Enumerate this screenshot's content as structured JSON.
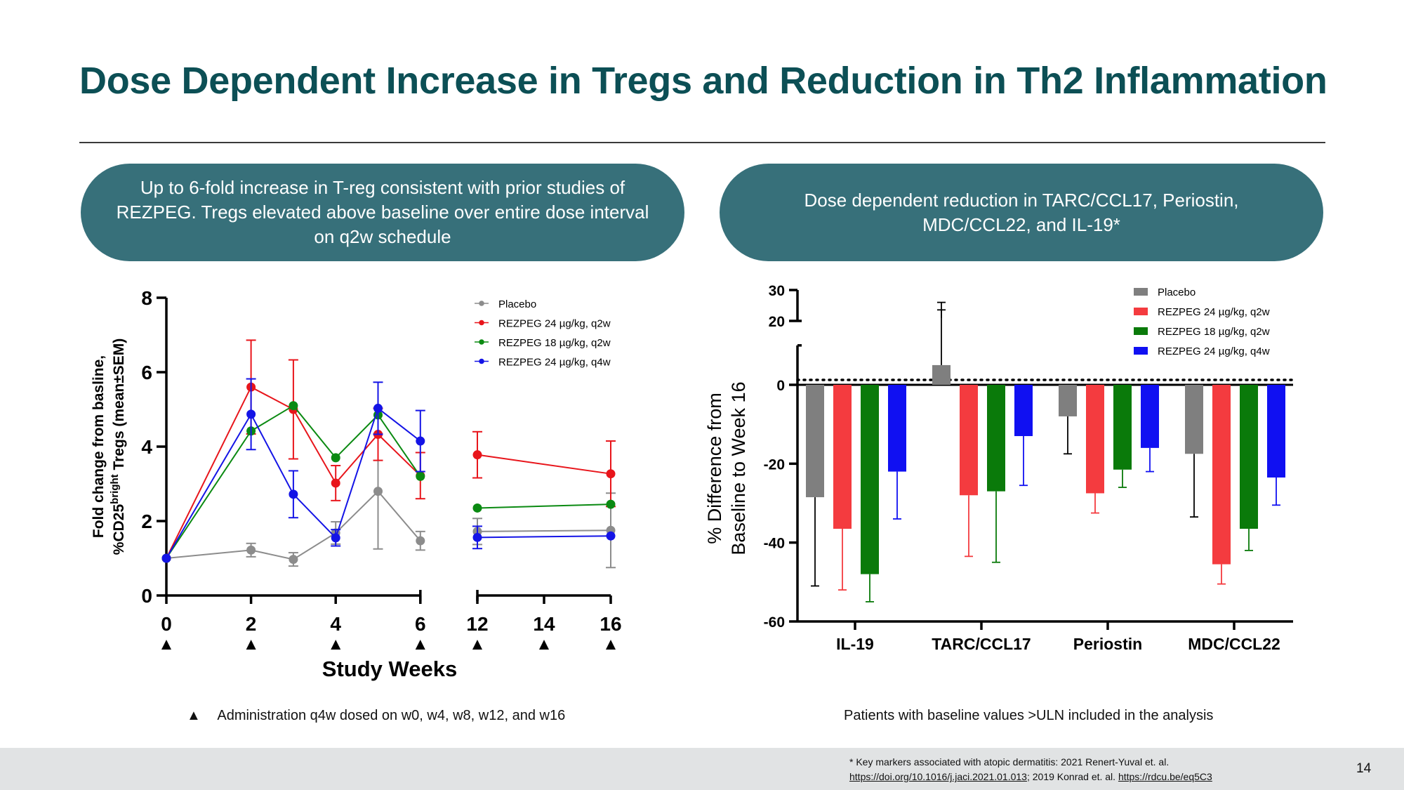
{
  "slide": {
    "title": "Dose Dependent Increase in Tregs and Reduction in Th2 Inflammation",
    "page_number": "14"
  },
  "left_panel": {
    "pill_text": "Up to 6-fold increase in T-reg consistent with prior studies of REZPEG. Tregs elevated above baseline over entire dose interval on q2w schedule",
    "note_symbol": "▲",
    "note_text": "Administration q4w dosed on w0, w4, w8, w12, and w16"
  },
  "right_panel": {
    "pill_text": "Dose dependent reduction in TARC/CCL17, Periostin, MDC/CCL22, and IL-19*",
    "note_text": "Patients with baseline values >ULN included in the analysis"
  },
  "footnote": {
    "line1": "* Key markers associated with atopic dermatitis: 2021 Renert-Yuval et. al.",
    "link1": "https://doi.org/10.1016/j.jaci.2021.01.013",
    "mid": ";  2019 Konrad et. al. ",
    "link2": "https://rdcu.be/eq5C3"
  },
  "chart_data": [
    {
      "type": "line",
      "ylabel_line1": "Fold change from basline,",
      "ylabel_line2_pre": "%CD25",
      "ylabel_line2_sup": "bright",
      "ylabel_line2_post": " Tregs (mean±SEM)",
      "xlabel": "Study Weeks",
      "ylim": [
        0,
        8
      ],
      "yticks": [
        0,
        2,
        4,
        6,
        8
      ],
      "xticks": [
        0,
        2,
        4,
        6,
        12,
        14,
        16
      ],
      "x_axis_break": [
        6,
        12
      ],
      "dose_markers_at": [
        0,
        2,
        4,
        6,
        12,
        14,
        16
      ],
      "dose_marker_symbol": "▲",
      "legend_position": "top-right",
      "series": [
        {
          "name": "Placebo",
          "color": "#8c8c8c",
          "segments": [
            {
              "x": [
                0,
                2,
                3,
                4,
                5,
                6
              ],
              "y": [
                1.0,
                1.22,
                0.97,
                1.68,
                2.8,
                1.47
              ],
              "err": [
                0,
                0.18,
                0.18,
                0.3,
                1.55,
                0.25
              ]
            },
            {
              "x": [
                12,
                16
              ],
              "y": [
                1.72,
                1.75
              ],
              "err": [
                0.35,
                1.0
              ]
            }
          ]
        },
        {
          "name": "REZPEG 24 µg/kg, q2w",
          "color": "#e8151b",
          "segments": [
            {
              "x": [
                0,
                2,
                3,
                4,
                5,
                6
              ],
              "y": [
                1.0,
                5.6,
                5.0,
                3.02,
                4.33,
                3.22
              ],
              "err": [
                0,
                1.26,
                1.33,
                0.47,
                0.7,
                0.62
              ]
            },
            {
              "x": [
                12,
                16
              ],
              "y": [
                3.78,
                3.27
              ],
              "err": [
                0.62,
                0.88
              ]
            }
          ]
        },
        {
          "name": "REZPEG 18 µg/kg, q2w",
          "color": "#0b8a12",
          "segments": [
            {
              "x": [
                0,
                2,
                3,
                4,
                5,
                6
              ],
              "y": [
                1.0,
                4.42,
                5.1,
                3.7,
                4.85,
                3.2
              ],
              "err": [
                0,
                0,
                0,
                0,
                0,
                0
              ]
            },
            {
              "x": [
                12,
                16
              ],
              "y": [
                2.35,
                2.45
              ],
              "err": [
                0,
                0
              ]
            }
          ]
        },
        {
          "name": "REZPEG 24 µg/kg, q4w",
          "color": "#1414e6",
          "segments": [
            {
              "x": [
                0,
                2,
                3,
                4,
                5,
                6
              ],
              "y": [
                1.0,
                4.87,
                2.72,
                1.55,
                5.03,
                4.15
              ],
              "err": [
                0,
                0.95,
                0.63,
                0.22,
                0.7,
                0.82
              ]
            },
            {
              "x": [
                12,
                16
              ],
              "y": [
                1.56,
                1.6
              ],
              "err": [
                0.3,
                0
              ]
            }
          ]
        }
      ]
    },
    {
      "type": "bar",
      "ylabel_line1": "% Difference from",
      "ylabel_line2": "Baseline to Week 16",
      "categories": [
        "IL-19",
        "TARC/CCL17",
        "Periostin",
        "MDC/CCL22"
      ],
      "yticks": [
        30,
        20,
        0,
        -20,
        -40,
        -60
      ],
      "ylim_lower": [
        -60,
        10
      ],
      "ylim_upper": [
        20,
        30
      ],
      "legend_position": "top-right",
      "series": [
        {
          "name": "Placebo",
          "color": "#7f7f7f",
          "values": [
            -28.5,
            5.0,
            -8.0,
            -17.5
          ],
          "err": [
            22.5,
            14.0,
            9.5,
            16.0
          ]
        },
        {
          "name": "REZPEG 24 µg/kg, q2w",
          "color": "#f43b3f",
          "values": [
            -36.5,
            -28.0,
            -27.5,
            -45.5
          ],
          "err": [
            15.5,
            15.5,
            5.0,
            5.0
          ]
        },
        {
          "name": "REZPEG 18 µg/kg, q2w",
          "color": "#0a7a0a",
          "values": [
            -48.0,
            -27.0,
            -21.5,
            -36.5
          ],
          "err": [
            7.0,
            18.0,
            4.5,
            5.5
          ]
        },
        {
          "name": "REZPEG 24 µg/kg, q4w",
          "color": "#1010f2",
          "values": [
            -22.0,
            -13.0,
            -16.0,
            -23.5
          ],
          "err": [
            12.0,
            12.5,
            6.0,
            7.0
          ]
        }
      ]
    }
  ]
}
